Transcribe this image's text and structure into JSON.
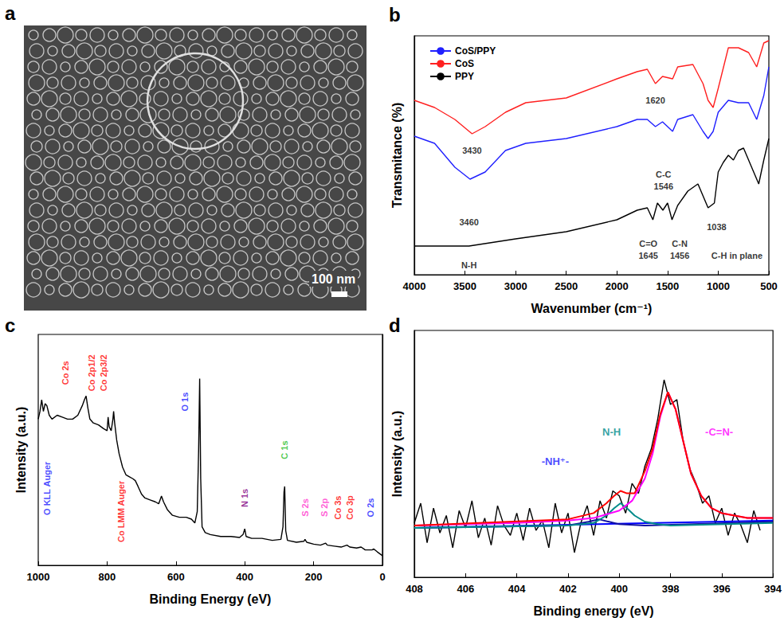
{
  "image_panel": {
    "panel": "a",
    "scale_bar": "100 nm"
  },
  "chart_data": [
    {
      "panel": "b",
      "type": "line",
      "xlabel": "Wavenumber (cm⁻¹)",
      "ylabel": "Transmitance (%)",
      "xlim": [
        4000,
        500
      ],
      "xticks": [
        4000,
        3500,
        3000,
        2500,
        2000,
        1500,
        1000,
        500
      ],
      "ylim": [
        0,
        100
      ],
      "tick_labels": "x",
      "grid": false,
      "legend": "upper left",
      "series": [
        {
          "name": "CoS/PPY",
          "color": "#2020ff",
          "x": [
            4000,
            3800,
            3600,
            3450,
            3300,
            3100,
            2900,
            2500,
            2000,
            1800,
            1700,
            1620,
            1550,
            1450,
            1400,
            1250,
            1150,
            1100,
            1050,
            1000,
            900,
            800,
            700,
            620,
            550,
            500
          ],
          "values": [
            58,
            55,
            45,
            40,
            43,
            52,
            55,
            57,
            62,
            65,
            65,
            62,
            64,
            60,
            65,
            67,
            60,
            57,
            60,
            68,
            73,
            72,
            72,
            65,
            75,
            87
          ]
        },
        {
          "name": "CoS",
          "color": "#ff2020",
          "x": [
            4000,
            3800,
            3600,
            3430,
            3300,
            3100,
            2900,
            2500,
            2000,
            1800,
            1700,
            1620,
            1550,
            1450,
            1400,
            1250,
            1150,
            1100,
            1050,
            1000,
            900,
            800,
            700,
            620,
            550,
            500
          ],
          "values": [
            73,
            70,
            65,
            59,
            62,
            68,
            72,
            74,
            82,
            85,
            86,
            80,
            83,
            82,
            87,
            88,
            80,
            73,
            70,
            78,
            95,
            95,
            93,
            87,
            97,
            98
          ]
        },
        {
          "name": "PPY",
          "color": "#000000",
          "x": [
            4000,
            3460,
            3000,
            2500,
            2000,
            1800,
            1700,
            1645,
            1600,
            1546,
            1500,
            1456,
            1400,
            1300,
            1200,
            1100,
            1038,
            1000,
            950,
            900,
            850,
            800,
            750,
            700,
            650,
            600,
            550,
            500
          ],
          "values": [
            12,
            12,
            15,
            18,
            23,
            27,
            28,
            23,
            30,
            27,
            30,
            23,
            29,
            35,
            38,
            28,
            30,
            43,
            47,
            50,
            48,
            52,
            53,
            48,
            43,
            38,
            48,
            57
          ]
        }
      ],
      "annotations": [
        {
          "text": "3430",
          "x": 3430,
          "y": 52,
          "color": "#000000"
        },
        {
          "text": "1620",
          "x": 1620,
          "y": 73,
          "color": "#000000"
        },
        {
          "text": "3460",
          "x": 3460,
          "y": 22,
          "color": "#000000"
        },
        {
          "text": "N-H",
          "x": 3460,
          "y": 4,
          "color": "#000000"
        },
        {
          "text": "C=O",
          "x": 1690,
          "y": 13,
          "color": "#000000"
        },
        {
          "text": "1645",
          "x": 1690,
          "y": 8,
          "color": "#000000"
        },
        {
          "text": "C-C",
          "x": 1540,
          "y": 42,
          "color": "#000000"
        },
        {
          "text": "1546",
          "x": 1540,
          "y": 37,
          "color": "#000000"
        },
        {
          "text": "C-N",
          "x": 1380,
          "y": 13,
          "color": "#000000"
        },
        {
          "text": "1456",
          "x": 1380,
          "y": 8,
          "color": "#000000"
        },
        {
          "text": "1038",
          "x": 1016,
          "y": 20,
          "color": "#000000"
        },
        {
          "text": "C-H in plane",
          "x": 815,
          "y": 8,
          "color": "#000000"
        }
      ]
    },
    {
      "panel": "c",
      "type": "line",
      "xlabel": "Binding Energy (eV)",
      "ylabel": "Intensity (a.u.)",
      "xlim": [
        1000,
        0
      ],
      "xticks": [
        1000,
        800,
        600,
        400,
        200,
        0
      ],
      "ylim": [
        0,
        120
      ],
      "tick_labels": "x",
      "grid": false,
      "series": [
        {
          "color": "#000000",
          "x": [
            1000,
            995,
            990,
            985,
            980,
            975,
            968,
            960,
            945,
            930,
            915,
            900,
            885,
            872,
            866,
            861,
            856,
            850,
            840,
            825,
            810,
            800,
            797,
            794,
            788,
            783,
            781,
            778,
            772,
            765,
            755,
            745,
            735,
            725,
            718,
            710,
            700,
            690,
            675,
            660,
            650,
            642,
            636,
            625,
            610,
            590,
            570,
            555,
            545,
            538,
            534,
            531,
            528,
            524,
            515,
            500,
            470,
            440,
            415,
            405,
            400,
            396,
            380,
            350,
            320,
            295,
            289,
            286,
            284,
            281,
            276,
            250,
            228,
            225,
            220,
            200,
            180,
            165,
            160,
            140,
            120,
            103,
            95,
            75,
            62,
            50,
            30,
            25,
            15,
            0
          ],
          "values": [
            76,
            80,
            86,
            80,
            84,
            83,
            78,
            76,
            78,
            77,
            76,
            76,
            78,
            83,
            86,
            88,
            82,
            76,
            74,
            73,
            71,
            70,
            77,
            72,
            70,
            76,
            80,
            74,
            65,
            58,
            51,
            47,
            46,
            45,
            44,
            41,
            37,
            35,
            34,
            33,
            32,
            36,
            33,
            29,
            26,
            25,
            25,
            24,
            22,
            28,
            60,
            97,
            45,
            20,
            17,
            16,
            15,
            15,
            14.5,
            16,
            19,
            15,
            14,
            14,
            13,
            13.5,
            20,
            38,
            41,
            18,
            13,
            12,
            12.5,
            13.5,
            12,
            11,
            10.5,
            11.5,
            10.5,
            10,
            9.5,
            10.5,
            9.5,
            9,
            9.5,
            8,
            8,
            8.5,
            7,
            5
          ]
        }
      ],
      "annotations": [
        {
          "text": "O KLL Auger",
          "x": 975,
          "y": 40,
          "color": "#1a1aff",
          "orientation": "vertical"
        },
        {
          "text": "Co 2s",
          "x": 922,
          "y": 100,
          "color": "#ff0000",
          "orientation": "vertical"
        },
        {
          "text": "Co 2p1/2",
          "x": 845,
          "y": 100,
          "color": "#ff0000",
          "orientation": "vertical"
        },
        {
          "text": "Co 2p3/2",
          "x": 810,
          "y": 100,
          "color": "#ff0000",
          "orientation": "vertical"
        },
        {
          "text": "Co LMM Auger",
          "x": 760,
          "y": 28,
          "color": "#ff0000",
          "orientation": "vertical"
        },
        {
          "text": "O 1s",
          "x": 575,
          "y": 85,
          "color": "#1a1aff",
          "orientation": "vertical"
        },
        {
          "text": "N 1s",
          "x": 400,
          "y": 35,
          "color": "#800080",
          "orientation": "vertical"
        },
        {
          "text": "C 1s",
          "x": 285,
          "y": 60,
          "color": "#22bb22",
          "orientation": "vertical"
        },
        {
          "text": "S 2s",
          "x": 224,
          "y": 30,
          "color": "#ff33cc",
          "orientation": "vertical"
        },
        {
          "text": "S 2p",
          "x": 170,
          "y": 30,
          "color": "#ff33cc",
          "orientation": "vertical"
        },
        {
          "text": "Co 3s",
          "x": 130,
          "y": 30,
          "color": "#ff0000",
          "orientation": "vertical"
        },
        {
          "text": "Co 3p",
          "x": 94,
          "y": 30,
          "color": "#ff0000",
          "orientation": "vertical"
        },
        {
          "text": "O 2s",
          "x": 35,
          "y": 30,
          "color": "#1a1aff",
          "orientation": "vertical"
        }
      ]
    },
    {
      "panel": "d",
      "type": "line",
      "xlabel": "Binding energy (eV)",
      "ylabel": "Intensity (a.u.)",
      "xlim": [
        408,
        394
      ],
      "xticks": [
        408,
        406,
        404,
        402,
        400,
        398,
        396,
        394
      ],
      "ylim": [
        0,
        100
      ],
      "tick_labels": "x",
      "grid": false,
      "series": [
        {
          "color": "#000000",
          "x": [
            408,
            407.75,
            407.5,
            407.25,
            407,
            406.75,
            406.5,
            406.25,
            406,
            405.75,
            405.5,
            405.25,
            405,
            404.75,
            404.5,
            404.25,
            404,
            403.75,
            403.5,
            403.25,
            403,
            402.75,
            402.5,
            402.25,
            402,
            401.75,
            401.5,
            401.25,
            401,
            400.75,
            400.5,
            400.25,
            400,
            399.75,
            399.5,
            399.25,
            399,
            398.75,
            398.5,
            398.25,
            398,
            397.75,
            397.5,
            397.25,
            397,
            396.75,
            396.5,
            396.25,
            396,
            395.75,
            395.5,
            395.25,
            395,
            394.75,
            394.5
          ],
          "values": [
            22,
            30,
            14,
            28,
            18,
            25,
            12,
            27,
            20,
            31,
            16,
            24,
            13,
            29,
            21,
            17,
            26,
            15,
            28,
            19,
            23,
            12,
            30,
            18,
            26,
            10,
            22,
            29,
            17,
            31,
            24,
            35,
            33,
            26,
            38,
            34,
            45,
            52,
            64,
            80,
            70,
            72,
            55,
            44,
            38,
            30,
            33,
            22,
            28,
            17,
            26,
            21,
            14,
            27,
            19
          ]
        },
        {
          "color": "#0000ff",
          "x": [
            408,
            394
          ],
          "values": [
            20,
            23
          ]
        },
        {
          "color": "#1010a0",
          "x": [
            408,
            402,
            401.2,
            400.8,
            400.4,
            400,
            399,
            394
          ],
          "values": [
            20,
            21,
            22.5,
            23.5,
            22.5,
            21.5,
            21,
            22.5
          ]
        },
        {
          "color": "#008b8b",
          "x": [
            408,
            402,
            401,
            400.5,
            400.2,
            399.95,
            399.7,
            399.4,
            399,
            398.5,
            398,
            394
          ],
          "values": [
            20,
            21,
            22,
            25,
            28,
            30,
            28,
            25,
            22.5,
            21.5,
            21,
            22
          ]
        },
        {
          "color": "#ff00ff",
          "x": [
            408,
            404,
            402,
            401,
            400,
            399.5,
            399,
            398.7,
            398.4,
            398.1,
            397.8,
            397.5,
            397.2,
            396.8,
            396.4,
            396,
            395,
            394
          ],
          "values": [
            21,
            22,
            23,
            24,
            27,
            31,
            40,
            50,
            65,
            75,
            68,
            55,
            42,
            33,
            28,
            26,
            24,
            24
          ]
        },
        {
          "color": "#ff0000",
          "x": [
            408,
            402,
            401,
            400.5,
            400.2,
            399.95,
            399.7,
            399.4,
            399,
            398.7,
            398.4,
            398.1,
            397.8,
            397.5,
            397.2,
            396.8,
            396.4,
            396,
            395,
            394
          ],
          "values": [
            21,
            23.5,
            26,
            30,
            33,
            35,
            34,
            34,
            43,
            52,
            66,
            75,
            68,
            55,
            42,
            33,
            28,
            26,
            24,
            24
          ]
        }
      ],
      "annotations": [
        {
          "text": "-NH⁺-",
          "x": 402.5,
          "y": 47,
          "color": "#1a1aff"
        },
        {
          "text": "N-H",
          "x": 400.3,
          "y": 59,
          "color": "#008b8b"
        },
        {
          "text": "-C=N-",
          "x": 396.1,
          "y": 59,
          "color": "#ff00ff"
        }
      ]
    }
  ]
}
